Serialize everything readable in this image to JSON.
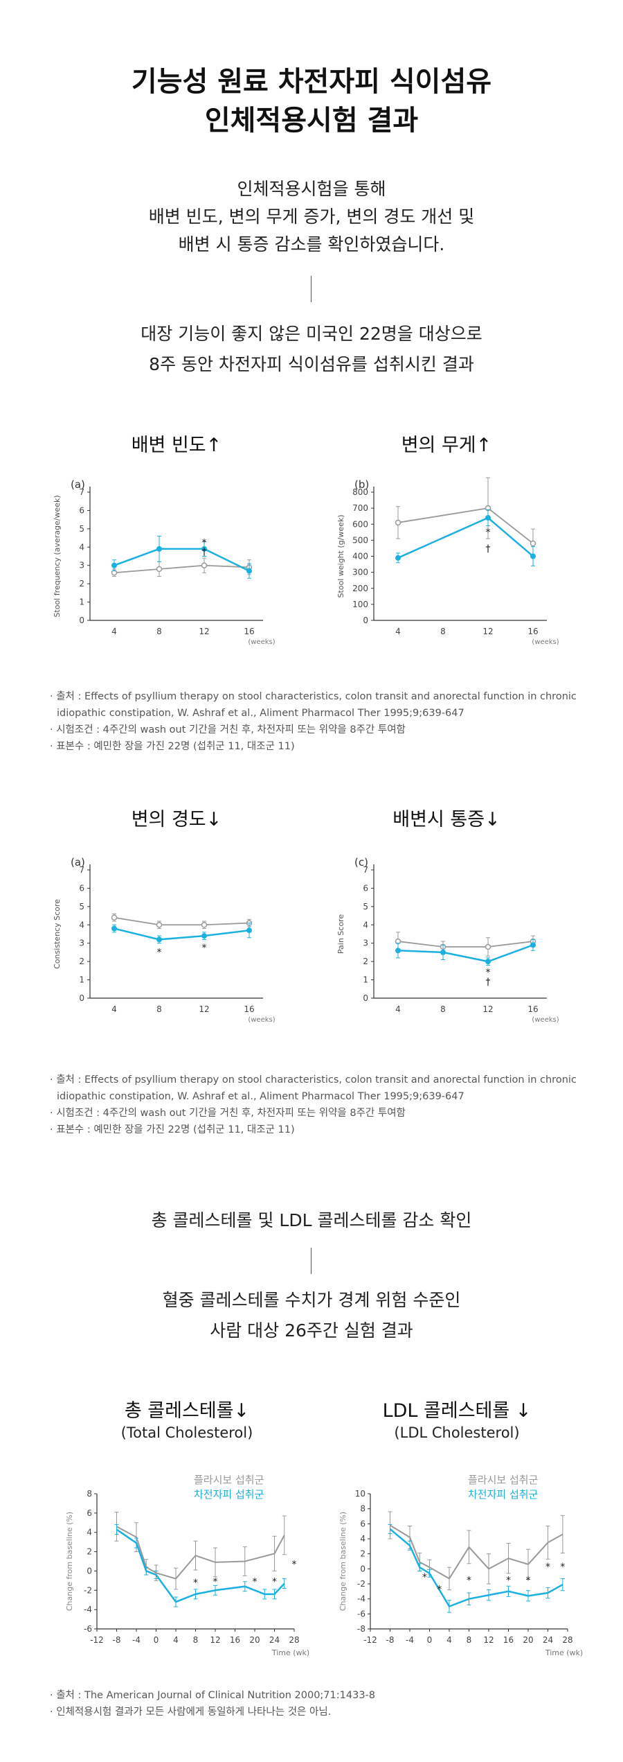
{
  "header": {
    "title_line1": "기능성 원료 차전자피 식이섬유",
    "title_line2": "인체적용시험 결과",
    "intro": [
      "인체적용시험을 통해",
      "배변 빈도, 변의 무게 증가, 변의 경도 개선 및",
      "배변 시 통증 감소를 확인하였습니다."
    ],
    "study": [
      "대장 기능이 좋지 않은 미국인 22명을 대상으로",
      "8주 동안 차전자피 식이섬유를 섭취시킨 결과"
    ]
  },
  "section1": {
    "notes": [
      "· 출처 : Effects of psyllium therapy on stool characteristics, colon transit and anorectal function in chronic idiopathic constipation, W. Ashraf et al., Aliment Pharmacol Ther 1995;9;639-647",
      "· 시험조건 : 4주간의 wash out 기간을 거친 후, 차전자피 또는 위약을 8주간 투여함",
      "· 표본수 : 예민한 장을 가진 22명 (섭취군 11, 대조군 11)"
    ]
  },
  "section2": {
    "notes": [
      "· 출처 : Effects of psyllium therapy on stool characteristics, colon transit and anorectal function in chronic idiopathic constipation, W. Ashraf et al., Aliment Pharmacol Ther 1995;9;639-647",
      "· 시험조건 : 4주간의 wash out 기간을 거친 후, 차전자피 또는 위약을 8주간 투여함",
      "· 표본수 : 예민한 장을 가진 22명 (섭취군 11, 대조군 11)"
    ]
  },
  "cholesterol": {
    "heading": "총 콜레스테롤 및 LDL 콜레스테롤 감소 확인",
    "study": [
      "혈중 콜레스테롤 수치가 경계 위험 수준인",
      "사람 대상 26주간 실험 결과"
    ],
    "notes": [
      "· 출처 : The American Journal of Clinical Nutrition 2000;71:1433-8",
      "· 인체적용시험 결과가 모든 사람에게 동일하게 나타나는 것은 아님."
    ]
  },
  "colors": {
    "placebo": "#999999",
    "psyllium": "#1ab0e0"
  },
  "chart_data": [
    {
      "id": "freq",
      "type": "line",
      "title": "배변 빈도↑",
      "panel": "(a)",
      "ylabel": "Stool frequency (average/week)",
      "xunit": "(weeks)",
      "ylim": [
        0,
        7
      ],
      "yticks": [
        0,
        1,
        2,
        3,
        4,
        5,
        6,
        7
      ],
      "categories": [
        "4",
        "8",
        "12",
        "16"
      ],
      "series": [
        {
          "values": [
            2.6,
            2.8,
            3.0,
            2.9
          ],
          "err": [
            0.2,
            0.4,
            0.4,
            0.4
          ],
          "color": "placebo"
        },
        {
          "values": [
            3.0,
            3.9,
            3.9,
            2.7
          ],
          "err": [
            0.3,
            0.7,
            0.4,
            0.4
          ],
          "color": "psyllium"
        }
      ],
      "annotations": [
        {
          "cat": 2,
          "text": "*",
          "y": 4.3
        },
        {
          "cat": 2,
          "text": "†",
          "y": 3.8
        }
      ]
    },
    {
      "id": "weight",
      "type": "line",
      "title": "변의 무게↑",
      "panel": "(b)",
      "ylabel": "Stool weight (g/week)",
      "xunit": "(weeks)",
      "ylim": [
        0,
        800
      ],
      "yticks": [
        0,
        100,
        200,
        300,
        400,
        500,
        600,
        700,
        800
      ],
      "categories": [
        "4",
        "8",
        "12",
        "16"
      ],
      "series": [
        {
          "values": [
            610,
            null,
            700,
            480
          ],
          "err": [
            100,
            0,
            190,
            90
          ],
          "color": "placebo"
        },
        {
          "values": [
            390,
            null,
            640,
            400
          ],
          "err": [
            30,
            0,
            50,
            60
          ],
          "color": "psyllium"
        }
      ],
      "annotations": [
        {
          "cat": 2,
          "text": "*",
          "y": 555
        },
        {
          "cat": 2,
          "text": "†",
          "y": 455
        }
      ]
    },
    {
      "id": "consistency",
      "type": "line",
      "title": "변의 경도↓",
      "panel": "(a)",
      "ylabel": "Consistency Score",
      "xunit": "(weeks)",
      "ylim": [
        0,
        7
      ],
      "yticks": [
        0,
        1,
        2,
        3,
        4,
        5,
        6,
        7
      ],
      "categories": [
        "4",
        "8",
        "12",
        "16"
      ],
      "series": [
        {
          "values": [
            4.4,
            4.0,
            4.0,
            4.1
          ],
          "err": [
            0.2,
            0.2,
            0.2,
            0.2
          ],
          "color": "placebo"
        },
        {
          "values": [
            3.8,
            3.2,
            3.4,
            3.7
          ],
          "err": [
            0.2,
            0.2,
            0.2,
            0.4
          ],
          "color": "psyllium"
        }
      ],
      "annotations": [
        {
          "cat": 1,
          "text": "*",
          "y": 2.55
        },
        {
          "cat": 2,
          "text": "*",
          "y": 2.8
        }
      ]
    },
    {
      "id": "pain",
      "type": "line",
      "title": "배변시 통증↓",
      "panel": "(c)",
      "ylabel": "Pain Score",
      "xunit": "(weeks)",
      "ylim": [
        0,
        7
      ],
      "yticks": [
        0,
        1,
        2,
        3,
        4,
        5,
        6,
        7
      ],
      "categories": [
        "4",
        "8",
        "12",
        "16"
      ],
      "series": [
        {
          "values": [
            3.1,
            2.8,
            2.8,
            3.1
          ],
          "err": [
            0.5,
            0.3,
            0.5,
            0.3
          ],
          "color": "placebo"
        },
        {
          "values": [
            2.6,
            2.5,
            2.0,
            2.9
          ],
          "err": [
            0.4,
            0.4,
            0.2,
            0.3
          ],
          "color": "psyllium"
        }
      ],
      "annotations": [
        {
          "cat": 2,
          "text": "*",
          "y": 1.45
        },
        {
          "cat": 2,
          "text": "†",
          "y": 0.95
        }
      ]
    },
    {
      "id": "total",
      "type": "line",
      "title": "총 콜레스테롤↓",
      "subtitle": "(Total Cholesterol)",
      "ylabel": "Change from baseline (%)",
      "xlabel": "Time (wk)",
      "xlim": [
        -12,
        28
      ],
      "xticks": [
        -12,
        -8,
        -4,
        0,
        4,
        8,
        12,
        16,
        20,
        24,
        28
      ],
      "ylim": [
        -6,
        8
      ],
      "yticks": [
        -6,
        -4,
        -2,
        0,
        2,
        4,
        6,
        8
      ],
      "legend": [
        "플라시보 섭취군",
        "차전자피 섭취군"
      ],
      "series": [
        {
          "name": "플라시보 섭취군",
          "color": "placebo",
          "x": [
            -8,
            -4,
            -2,
            0,
            4,
            8,
            12,
            18,
            24,
            26
          ],
          "y": [
            4.6,
            3.5,
            0.4,
            -0.2,
            -0.8,
            1.6,
            0.9,
            1.0,
            1.8,
            3.7
          ],
          "err": [
            1.5,
            1.5,
            0.8,
            0.8,
            1.1,
            1.5,
            1.5,
            1.5,
            1.8,
            2.0
          ]
        },
        {
          "name": "차전자피 섭취군",
          "color": "psyllium",
          "x": [
            -8,
            -4,
            -2,
            0,
            4,
            8,
            12,
            18,
            22,
            24,
            26
          ],
          "y": [
            4.3,
            2.9,
            0.0,
            -0.4,
            -3.2,
            -2.4,
            -2.0,
            -1.6,
            -2.4,
            -2.4,
            -1.3
          ],
          "err": [
            0.5,
            0.5,
            0.4,
            0.4,
            0.5,
            0.5,
            0.5,
            0.5,
            0.5,
            0.5,
            0.5
          ]
        }
      ],
      "annotations": [
        {
          "x": 8,
          "y": -1.1,
          "text": "*"
        },
        {
          "x": 12,
          "y": -1.0,
          "text": "*"
        },
        {
          "x": 20,
          "y": -1.0,
          "text": "*"
        },
        {
          "x": 24,
          "y": -1.0,
          "text": "*"
        },
        {
          "x": 28,
          "y": 0.8,
          "text": "*"
        }
      ]
    },
    {
      "id": "ldl",
      "type": "line",
      "title": "LDL 콜레스테롤 ↓",
      "subtitle": "(LDL Cholesterol)",
      "ylabel": "Change from baseline (%)",
      "xlabel": "Time (wk)",
      "xlim": [
        -12,
        28
      ],
      "xticks": [
        -12,
        -8,
        -4,
        0,
        4,
        8,
        12,
        16,
        20,
        24,
        28
      ],
      "ylim": [
        -8,
        10
      ],
      "yticks": [
        -8,
        -6,
        -4,
        -2,
        0,
        2,
        4,
        6,
        8,
        10
      ],
      "legend": [
        "플라시보 섭취군",
        "차전자피 섭취군"
      ],
      "series": [
        {
          "name": "플라시보 섭취군",
          "color": "placebo",
          "x": [
            -8,
            -4,
            -2,
            0,
            4,
            8,
            12,
            16,
            20,
            24,
            27
          ],
          "y": [
            5.8,
            4.2,
            0.9,
            0.2,
            -1.3,
            2.9,
            0.0,
            1.4,
            0.6,
            3.5,
            4.6
          ],
          "err": [
            1.8,
            1.5,
            1.2,
            1.0,
            1.5,
            2.2,
            2.0,
            2.0,
            2.0,
            2.2,
            2.5
          ]
        },
        {
          "name": "차전자피 섭취군",
          "color": "psyllium",
          "x": [
            -8,
            -4,
            -2,
            0,
            4,
            8,
            12,
            16,
            20,
            24,
            27
          ],
          "y": [
            5.3,
            3.1,
            0.2,
            -0.6,
            -5.0,
            -4.0,
            -3.5,
            -3.0,
            -3.6,
            -3.2,
            -2.1
          ],
          "err": [
            0.6,
            0.6,
            0.5,
            0.5,
            0.8,
            0.8,
            0.7,
            0.7,
            0.7,
            0.7,
            0.8
          ]
        }
      ],
      "annotations": [
        {
          "x": -1,
          "y": -1.0,
          "text": "*"
        },
        {
          "x": 2,
          "y": -2.6,
          "text": "*"
        },
        {
          "x": 8,
          "y": -1.4,
          "text": "*"
        },
        {
          "x": 16,
          "y": -1.4,
          "text": "*"
        },
        {
          "x": 20,
          "y": -1.4,
          "text": "*"
        },
        {
          "x": 24,
          "y": 0.4,
          "text": "*"
        },
        {
          "x": 27,
          "y": 0.4,
          "text": "*"
        }
      ]
    }
  ]
}
